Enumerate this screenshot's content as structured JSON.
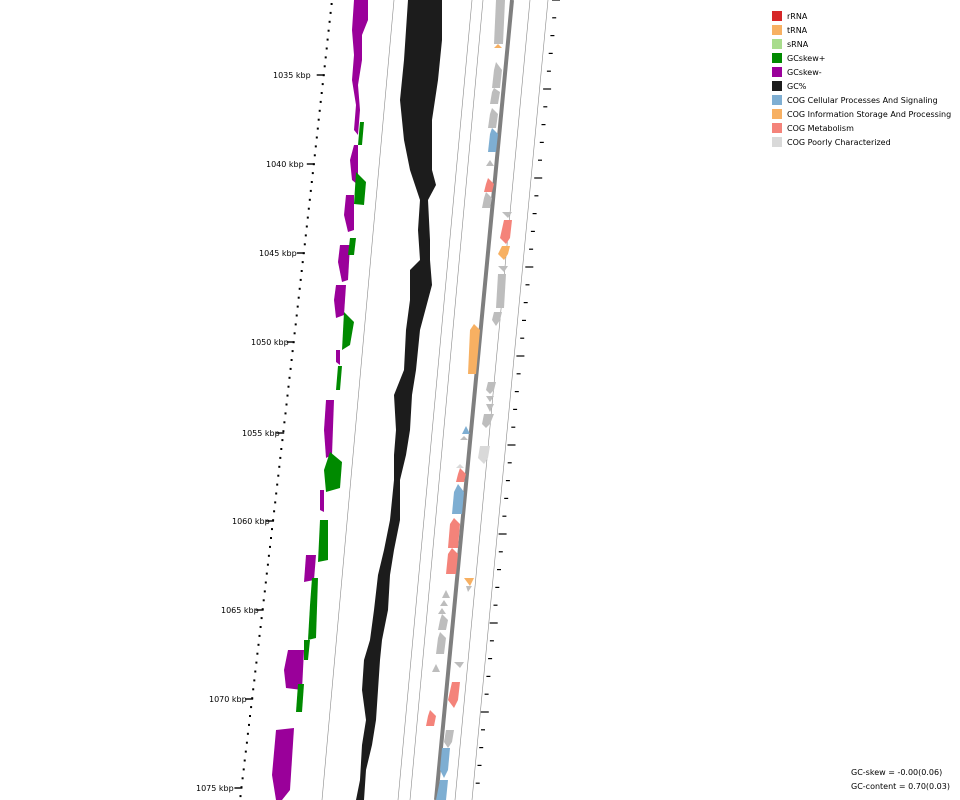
{
  "legend": [
    {
      "label": "rRNA",
      "color": "#d62728"
    },
    {
      "label": "tRNA",
      "color": "#f7b062"
    },
    {
      "label": "sRNA",
      "color": "#a8dc8c"
    },
    {
      "label": "GCskew+",
      "color": "#008a00"
    },
    {
      "label": "GCskew-",
      "color": "#9a009a"
    },
    {
      "label": "GC%",
      "color": "#1c1c1c"
    },
    {
      "label": "COG Cellular Processes And Signaling",
      "color": "#7eaed2"
    },
    {
      "label": "COG Information Storage And Processing",
      "color": "#f7b062"
    },
    {
      "label": "COG Metabolism",
      "color": "#f4837a"
    },
    {
      "label": "COG Poorly Characterized",
      "color": "#d9d9d9"
    }
  ],
  "scale_labels": [
    "1035 kbp",
    "1040 kbp",
    "1045 kbp",
    "1050 kbp",
    "1055 kbp",
    "1060 kbp",
    "1065 kbp",
    "1070 kbp",
    "1075 kbp"
  ],
  "stats": {
    "gc_skew": "GC-skew = -0.00(0.06)",
    "gc_content": "GC-content = 0.70(0.03)"
  },
  "colors": {
    "axis_line": "#7f7f7f",
    "thin_line": "#8a8a8a",
    "gene_gray": "#bdbdbd",
    "cog_cell": "#7eaed2",
    "cog_info": "#f7b062",
    "cog_meta": "#f4837a",
    "cog_poor": "#d9d9d9"
  }
}
